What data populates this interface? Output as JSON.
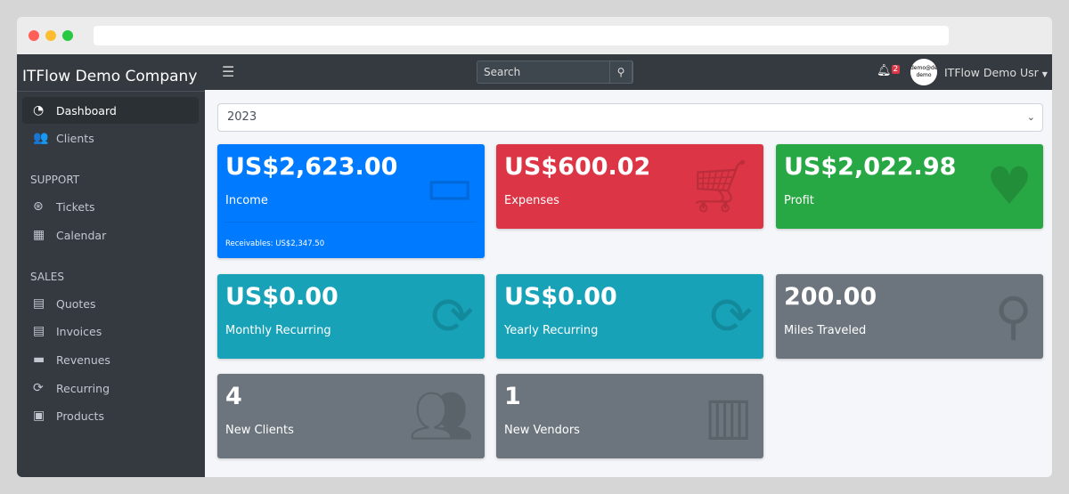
{
  "company": "ITFlow Demo Company",
  "sidebar": {
    "items": [
      {
        "label": "Dashboard",
        "icon": "dashboard-icon"
      },
      {
        "label": "Clients",
        "icon": "users-icon"
      }
    ],
    "support_header": "SUPPORT",
    "support": [
      {
        "label": "Tickets",
        "icon": "life-ring-icon"
      },
      {
        "label": "Calendar",
        "icon": "calendar-icon"
      }
    ],
    "sales_header": "SALES",
    "sales": [
      {
        "label": "Quotes",
        "icon": "file-icon"
      },
      {
        "label": "Invoices",
        "icon": "invoice-icon"
      },
      {
        "label": "Revenues",
        "icon": "credit-card-icon"
      },
      {
        "label": "Recurring",
        "icon": "sync-icon"
      },
      {
        "label": "Products",
        "icon": "box-icon"
      }
    ]
  },
  "topbar": {
    "search_placeholder": "Search",
    "notifications": "2",
    "avatar_text": "demo@demo demo",
    "user": "ITFlow Demo Usr"
  },
  "year": "2023",
  "cards": [
    {
      "value": "US$2,623.00",
      "label": "Income",
      "footer": "Receivables: US$2,347.50",
      "color": "#007bff"
    },
    {
      "value": "US$600.02",
      "label": "Expenses",
      "color": "#dc3545"
    },
    {
      "value": "US$2,022.98",
      "label": "Profit",
      "color": "#28a745"
    },
    {
      "value": "US$0.00",
      "label": "Monthly Recurring",
      "color": "#17a2b8"
    },
    {
      "value": "US$0.00",
      "label": "Yearly Recurring",
      "color": "#17a2b8"
    },
    {
      "value": "200.00",
      "label": "Miles Traveled",
      "color": "#6c757d"
    },
    {
      "value": "4",
      "label": "New Clients",
      "color": "#6c757d"
    },
    {
      "value": "1",
      "label": "New Vendors",
      "color": "#6c757d"
    }
  ]
}
